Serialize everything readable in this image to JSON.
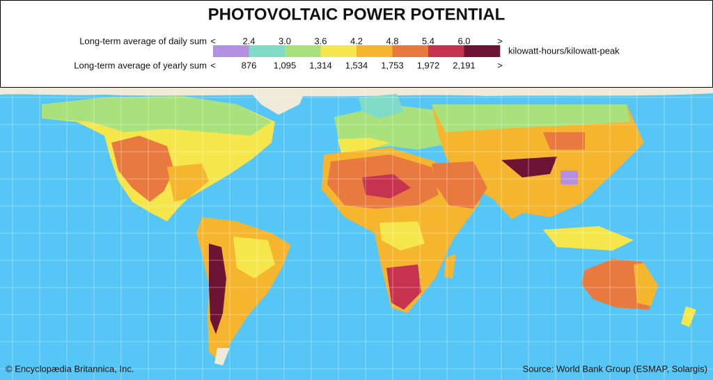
{
  "title": "PHOTOVOLTAIC POWER POTENTIAL",
  "legend": {
    "daily_label": "Long-term average of daily sum",
    "yearly_label": "Long-term average of yearly sum",
    "less": "<",
    "more": ">",
    "daily_ticks": [
      "2.4",
      "3.0",
      "3.6",
      "4.2",
      "4.8",
      "5.4",
      "6.0"
    ],
    "yearly_ticks": [
      "876",
      "1,095",
      "1,314",
      "1,534",
      "1,753",
      "1,972",
      "2,191"
    ],
    "colors": [
      "#b490e0",
      "#80dac8",
      "#a9e27c",
      "#f5e64c",
      "#f6b52f",
      "#e97a3f",
      "#c6334f",
      "#6d1434"
    ],
    "unit": "kilowatt-hours/kilowatt-peak"
  },
  "credit": "© Encyclopædia Britannica, Inc.",
  "source": "Source: World Bank Group (ESMAP, Solargis)"
}
